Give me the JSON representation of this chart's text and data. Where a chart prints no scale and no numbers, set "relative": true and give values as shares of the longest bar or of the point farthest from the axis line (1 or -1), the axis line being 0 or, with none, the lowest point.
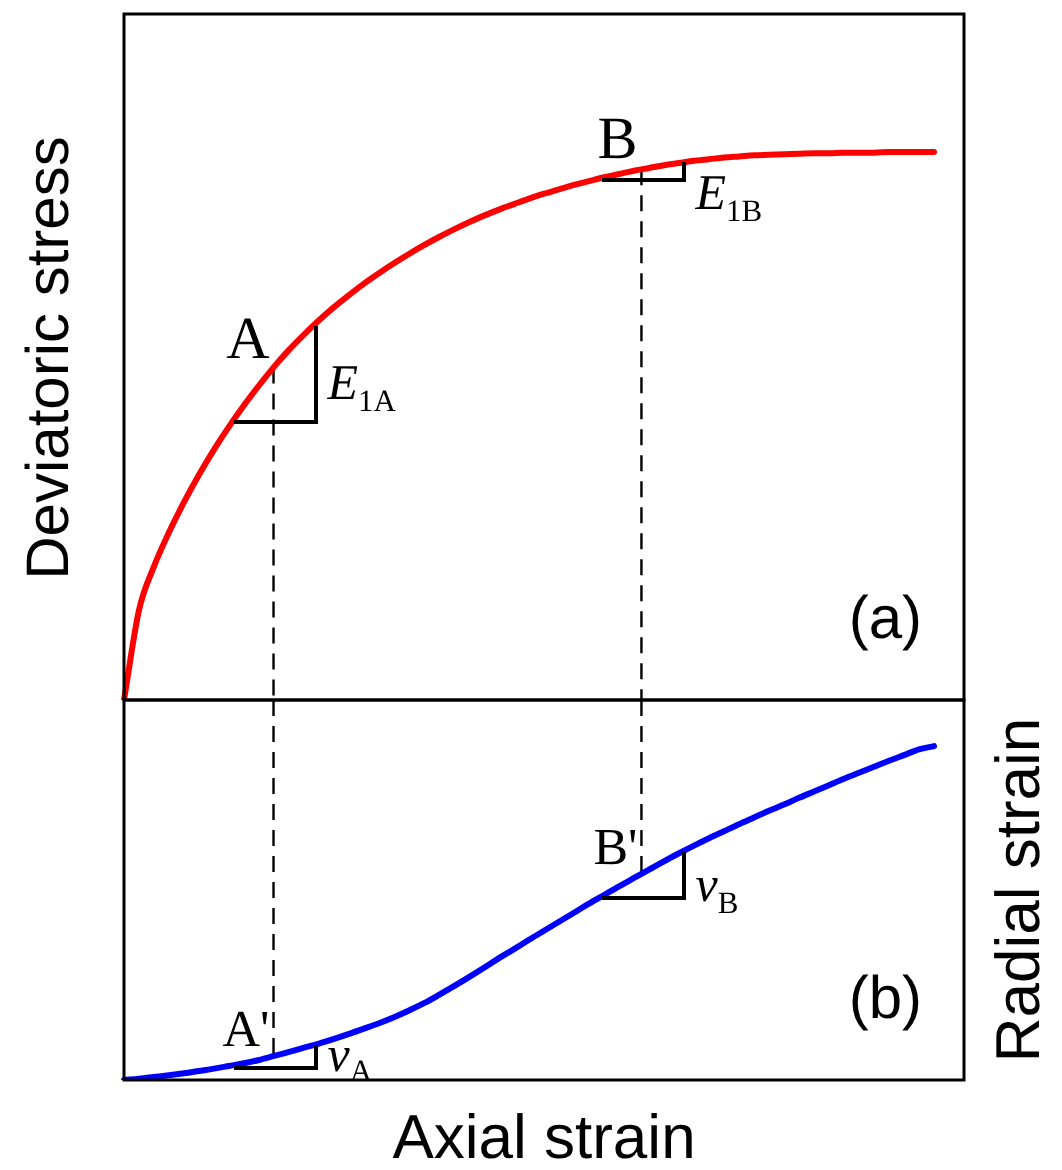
{
  "chart_data": [
    {
      "type": "line",
      "categories": [
        null,
        null,
        null,
        null,
        null,
        null,
        null,
        null,
        null,
        null,
        null,
        null,
        null,
        null,
        null,
        null,
        null,
        null,
        null,
        null,
        null,
        null,
        null,
        null,
        null,
        null,
        null,
        null,
        null,
        null,
        null,
        null,
        null,
        null,
        null,
        null,
        null,
        null,
        null,
        null,
        null,
        null,
        null,
        null,
        null,
        null,
        null,
        null,
        null,
        null,
        null,
        null,
        null,
        null,
        null,
        null,
        null
      ],
      "series": [
        {
          "color": "#ff0000",
          "values": [
            0,
            0.164,
            0.244,
            0.306,
            0.361,
            0.411,
            0.457,
            0.499,
            0.538,
            0.574,
            0.608,
            0.639,
            0.667,
            0.693,
            0.717,
            0.739,
            0.76,
            0.779,
            0.797,
            0.814,
            0.83,
            0.845,
            0.859,
            0.872,
            0.884,
            0.895,
            0.905,
            0.915,
            0.924,
            0.932,
            0.94,
            0.947,
            0.954,
            0.96,
            0.966,
            0.971,
            0.976,
            0.98,
            0.984,
            0.987,
            0.99,
            0.992,
            0.994,
            0.995,
            0.996,
            0.997,
            0.998,
            0.998,
            0.999,
            0.999,
            0.999,
            1,
            1,
            1,
            1,
            null,
            null
          ]
        }
      ],
      "relative": true,
      "ylabel": "Deviatoric stress",
      "annotations": [
        "A",
        "B",
        "E$_{1A}$",
        "E$_{1B}$",
        "(a)"
      ],
      "tick_labels": false,
      "marker": "none"
    },
    {
      "type": "line",
      "categories": [
        null,
        null,
        null,
        null,
        null,
        null,
        null,
        null,
        null,
        null,
        null,
        null,
        null,
        null,
        null,
        null,
        null,
        null,
        null,
        null,
        null,
        null,
        null,
        null,
        null,
        null,
        null,
        null,
        null,
        null,
        null,
        null,
        null,
        null,
        null,
        null,
        null,
        null,
        null,
        null,
        null,
        null,
        null,
        null,
        null,
        null,
        null,
        null,
        null,
        null,
        null,
        null,
        null,
        null,
        null,
        null,
        null
      ],
      "series": [
        {
          "color": "#0000ff",
          "values": [
            0,
            0.004,
            0.009,
            0.014,
            0.02,
            0.027,
            0.034,
            0.042,
            0.05,
            0.06,
            0.072,
            0.084,
            0.097,
            0.109,
            0.123,
            0.138,
            0.154,
            0.17,
            0.188,
            0.208,
            0.23,
            0.255,
            0.281,
            0.308,
            0.336,
            0.365,
            0.392,
            0.42,
            0.447,
            0.474,
            0.501,
            0.528,
            0.554,
            0.58,
            0.605,
            0.63,
            0.655,
            0.679,
            0.702,
            0.724,
            0.745,
            0.766,
            0.786,
            0.806,
            0.825,
            0.845,
            0.864,
            0.883,
            0.902,
            0.92,
            0.938,
            0.956,
            0.973,
            0.99,
            1,
            null,
            null
          ]
        }
      ],
      "relative": true,
      "xlabel": "Axial strain",
      "y2label": "Radial strain",
      "annotations": [
        "A'",
        "B'",
        "v$_{A}$",
        "v$_{B}$",
        "(b)"
      ],
      "tick_labels": false,
      "marker": "none"
    }
  ]
}
